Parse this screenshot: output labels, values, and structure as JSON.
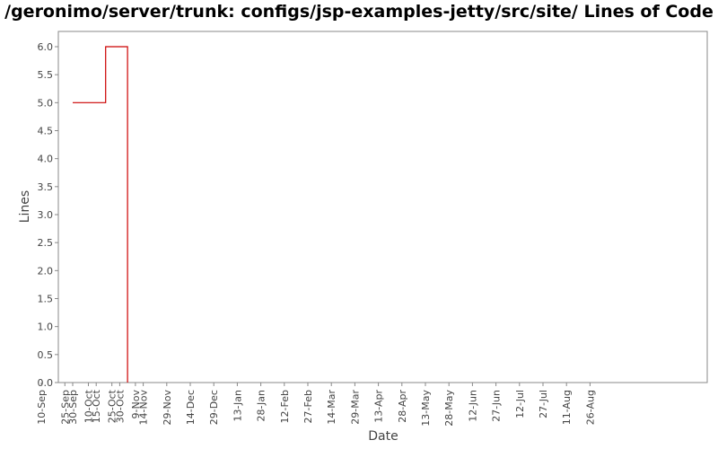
{
  "chart_data": {
    "type": "line",
    "title": "/geronimo/server/trunk: configs/jsp-examples-jetty/src/site/ Lines of Code",
    "xlabel": "Date",
    "ylabel": "Lines",
    "ylim": [
      0,
      6.25
    ],
    "y_ticks": [
      "0.0",
      "0.5",
      "1.0",
      "1.5",
      "2.0",
      "2.5",
      "3.0",
      "3.5",
      "4.0",
      "4.5",
      "5.0",
      "5.5",
      "6.0"
    ],
    "x_ticks": [
      "30-Sep",
      "15-Oct",
      "30-Oct",
      "14-Nov",
      "29-Nov",
      "14-Dec",
      "29-Dec",
      "13-Jan",
      "28-Jan",
      "12-Feb",
      "27-Feb",
      "14-Mar",
      "29-Mar",
      "13-Apr",
      "28-Apr",
      "13-May",
      "28-May",
      "12-Jun",
      "27-Jun",
      "12-Jul",
      "27-Jul",
      "11-Aug",
      "26-Aug",
      "10-Sep",
      "25-Sep",
      "10-Oct",
      "25-Oct",
      "9-Nov"
    ],
    "grid": false,
    "step": true,
    "line_color": "#cc0000",
    "series": [
      {
        "points": [
          {
            "x": "30-Sep",
            "y": 5
          },
          {
            "x": "21-Oct",
            "y": 5
          },
          {
            "x": "21-Oct",
            "y": 6
          },
          {
            "x": "4-Nov",
            "y": 6
          },
          {
            "x": "4-Nov",
            "y": 0
          }
        ]
      }
    ]
  }
}
